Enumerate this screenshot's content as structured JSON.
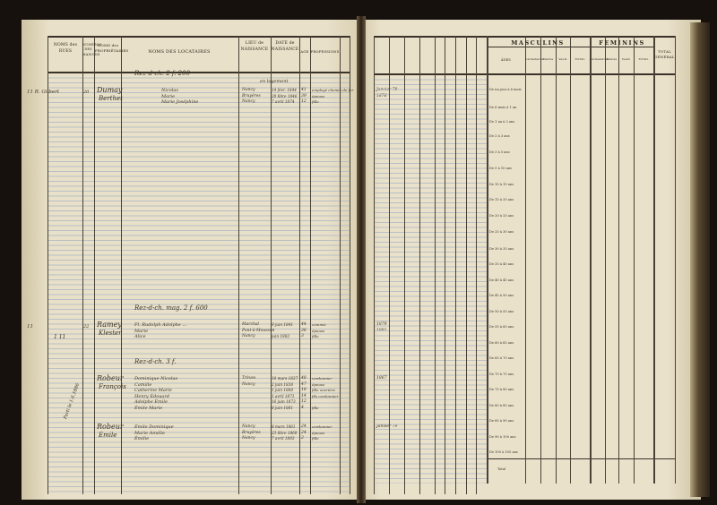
{
  "left_page": {
    "headers": {
      "street": "NOMS des RUES",
      "house_number": "NUMÉROS DES MAISONS",
      "owner": "NOMS des PROPRIÉTAIRES",
      "tenants": "NOMS DES LOCATAIRES",
      "birthplace": "LIEU de NAISSANCE",
      "birthdate": "DATE de NAISSANCE",
      "age": "AGE",
      "profession": "PROFESSIONS"
    },
    "entries": [
      {
        "floor_note": "Rez-d-ch. 2 f. 200",
        "street": "11 R. Gilbert",
        "number": "20",
        "owner": "Dumay",
        "owner2": "Berthet",
        "tenants": [
          "Nicolas",
          "Marie",
          "Marie Joséphine"
        ],
        "note": "en logement",
        "birthplaces": [
          "Nancy",
          "Bruyères",
          "Nancy"
        ],
        "birthdates": [
          "14 févr. 1844",
          "20 8bre 1846",
          "7 avril 1874"
        ],
        "ages": [
          "41",
          "39",
          "12"
        ],
        "professions": [
          "employé chemin de fer",
          "épouse",
          "fille"
        ],
        "arrival": [
          "Janvier 78",
          "1876"
        ]
      },
      {
        "floor_note": "Rez-d-ch. mag. 2 f. 600",
        "street": "11",
        "number": "22",
        "extra": "1 11",
        "owner": "Ramey",
        "owner2": "Klester",
        "tenants": [
          "Fl. Rudolph Adolphe ...",
          "Marie",
          "Alice"
        ],
        "birthplaces": [
          "Marchal",
          "Pont-à-Mousson",
          "Nancy"
        ],
        "birthdates": [
          "9 juin 1841",
          "",
          "juin 1882"
        ],
        "ages": [
          "44",
          "36",
          "3"
        ],
        "professions": [
          "commis",
          "épouse",
          "fille"
        ],
        "arrival": [
          "1879",
          "1881"
        ]
      },
      {
        "floor_note": "Rez-d-ch. 3 f.",
        "owner": "Robeur",
        "owner2": "François",
        "tenants": [
          "Dominique Nicolas",
          "Camille",
          "Catherine Marie",
          "Henry Edouard",
          "Adolphe Emile",
          "Émile Marie"
        ],
        "birthplaces": [
          "Trèves",
          "Nancy"
        ],
        "birthdates": [
          "10 mars 1837",
          "2 juin 1838",
          "1 juin 1868",
          "1 avril 1871",
          "16 juin 1873",
          "8 juin 1881"
        ],
        "ages": [
          "48",
          "47",
          "18",
          "14",
          "12",
          "4"
        ],
        "professions": [
          "cordonnier",
          "épouse",
          "fille ouvrière",
          "fils cordonnier",
          "",
          "fille"
        ],
        "arrival": [
          "1867"
        ]
      },
      {
        "margin_note": "Parti le 1.6.1886",
        "owner": "Robeur",
        "owner2": "Emile",
        "tenants": [
          "Émile Dominique",
          "Marie Amélie",
          "Émilie"
        ],
        "birthplaces": [
          "Nancy",
          "Bruyères",
          "Nancy"
        ],
        "birthdates": [
          "8 mars 1861",
          "23 8bre 1860",
          "7 avril 1883"
        ],
        "ages": [
          "24",
          "24",
          "2"
        ],
        "professions": [
          "cordonnier",
          "épouse",
          "fille"
        ],
        "arrival": [
          "Janvier 79"
        ]
      }
    ]
  },
  "right_page": {
    "masculins": "MASCULINS",
    "feminins": "FEMININS",
    "total_general": "TOTAL GÉNÉRAL",
    "ages_header": "ÂGES",
    "sub_headers": [
      "Célibataires",
      "Mariés",
      "Veufs",
      "TOTAL"
    ],
    "age_groups": [
      "De un jour à 6 mois",
      "De 6 mois à 1 an",
      "De 1 an à 2 ans",
      "De 2 à 3 ans",
      "De 3 à 5 ans",
      "De 5 à 10 ans",
      "De 10 à 15 ans",
      "De 15 à 20 ans",
      "De 20 à 25 ans",
      "De 25 à 30 ans",
      "De 30 à 35 ans",
      "De 35 à 40 ans",
      "De 40 à 45 ans",
      "De 45 à 50 ans",
      "De 50 à 55 ans",
      "De 55 à 60 ans",
      "De 60 à 65 ans",
      "De 65 à 70 ans",
      "De 70 à 75 ans",
      "De 75 à 80 ans",
      "De 80 à 85 ans",
      "De 85 à 90 ans",
      "De 90 à 100 ans",
      "De 100 à 105 ans"
    ],
    "total_label": "Total"
  }
}
